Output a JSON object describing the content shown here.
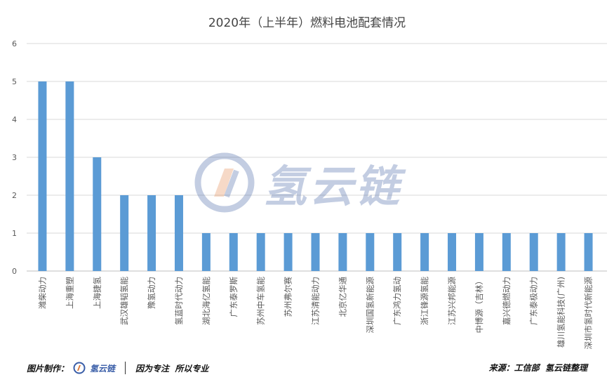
{
  "chart_data": {
    "type": "bar",
    "title": "2020年（上半年）燃料电池配套情况",
    "categories": [
      "潍柴动力",
      "上海重塑",
      "上海捷氢",
      "武汉雄韬氢能",
      "豫氢动力",
      "氢蓝时代动力",
      "湖北海亿氢能",
      "广东泰罗斯",
      "苏州中车氢能",
      "苏州弗尔赛",
      "江苏清能动力",
      "北京亿华通",
      "深圳国氢新能源",
      "广东鸿力氢动",
      "浙江锋源氢能",
      "江苏兴邦能源",
      "中博源（吉林）",
      "嘉兴德燃动力",
      "广东泰极动力",
      "雄川氢能科技(广州)",
      "深圳市氢时代新能源"
    ],
    "values": [
      5,
      5,
      3,
      2,
      2,
      2,
      1,
      1,
      1,
      1,
      1,
      1,
      1,
      1,
      1,
      1,
      1,
      1,
      1,
      1,
      1
    ],
    "ylim": [
      0,
      6
    ],
    "yticks": [
      0,
      1,
      2,
      3,
      4,
      5,
      6
    ],
    "grid": true,
    "bar_color": "#5b9bd5"
  },
  "watermark": {
    "text": "氢云链"
  },
  "footer": {
    "left_label": "图片制作：",
    "logo_text": "氢云链",
    "slogan": "因为专注  所以专业",
    "source": "来源：工信部  氢云链整理"
  }
}
